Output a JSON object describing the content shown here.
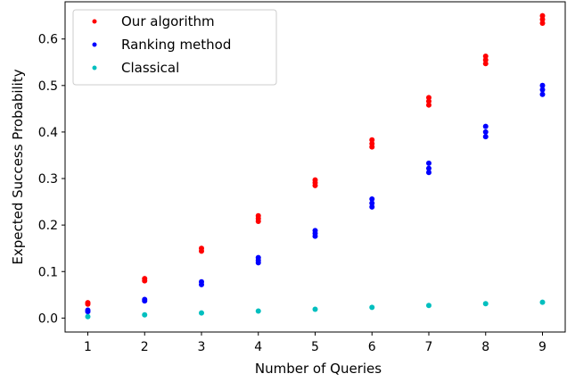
{
  "chart_data": {
    "type": "scatter",
    "title": "",
    "xlabel": "Number of Queries",
    "ylabel": "Expected Success Probability",
    "x_ticks": [
      1,
      2,
      3,
      4,
      5,
      6,
      7,
      8,
      9
    ],
    "y_ticks": [
      0.0,
      0.1,
      0.2,
      0.3,
      0.4,
      0.5,
      0.6
    ],
    "y_tick_labels": [
      "0.0",
      "0.1",
      "0.2",
      "0.3",
      "0.4",
      "0.5",
      "0.6"
    ],
    "xlim": [
      0.6,
      9.4
    ],
    "ylim": [
      -0.03,
      0.68
    ],
    "grid": false,
    "legend_position": "top-left",
    "series": [
      {
        "name": "Our algorithm",
        "color": "#ff0000",
        "points": [
          [
            1,
            0.03
          ],
          [
            1,
            0.033
          ],
          [
            2,
            0.08
          ],
          [
            2,
            0.085
          ],
          [
            3,
            0.144
          ],
          [
            3,
            0.15
          ],
          [
            4,
            0.208
          ],
          [
            4,
            0.214
          ],
          [
            4,
            0.22
          ],
          [
            5,
            0.285
          ],
          [
            5,
            0.291
          ],
          [
            5,
            0.297
          ],
          [
            6,
            0.368
          ],
          [
            6,
            0.375
          ],
          [
            6,
            0.383
          ],
          [
            7,
            0.458
          ],
          [
            7,
            0.466
          ],
          [
            7,
            0.474
          ],
          [
            8,
            0.547
          ],
          [
            8,
            0.555
          ],
          [
            8,
            0.563
          ],
          [
            9,
            0.634
          ],
          [
            9,
            0.642
          ],
          [
            9,
            0.65
          ]
        ]
      },
      {
        "name": "Ranking method",
        "color": "#0000ff",
        "points": [
          [
            1,
            0.014
          ],
          [
            1,
            0.017
          ],
          [
            2,
            0.037
          ],
          [
            2,
            0.04
          ],
          [
            3,
            0.072
          ],
          [
            3,
            0.078
          ],
          [
            4,
            0.119
          ],
          [
            4,
            0.124
          ],
          [
            4,
            0.13
          ],
          [
            5,
            0.176
          ],
          [
            5,
            0.182
          ],
          [
            5,
            0.188
          ],
          [
            6,
            0.239
          ],
          [
            6,
            0.247
          ],
          [
            6,
            0.256
          ],
          [
            7,
            0.313
          ],
          [
            7,
            0.322
          ],
          [
            7,
            0.333
          ],
          [
            8,
            0.39
          ],
          [
            8,
            0.4
          ],
          [
            8,
            0.412
          ],
          [
            9,
            0.481
          ],
          [
            9,
            0.491
          ],
          [
            9,
            0.5
          ]
        ]
      },
      {
        "name": "Classical",
        "color": "#00bfbf",
        "points": [
          [
            1,
            0.003
          ],
          [
            2,
            0.007
          ],
          [
            3,
            0.011
          ],
          [
            4,
            0.015
          ],
          [
            5,
            0.019
          ],
          [
            6,
            0.023
          ],
          [
            7,
            0.027
          ],
          [
            8,
            0.031
          ],
          [
            9,
            0.034
          ]
        ]
      }
    ]
  }
}
